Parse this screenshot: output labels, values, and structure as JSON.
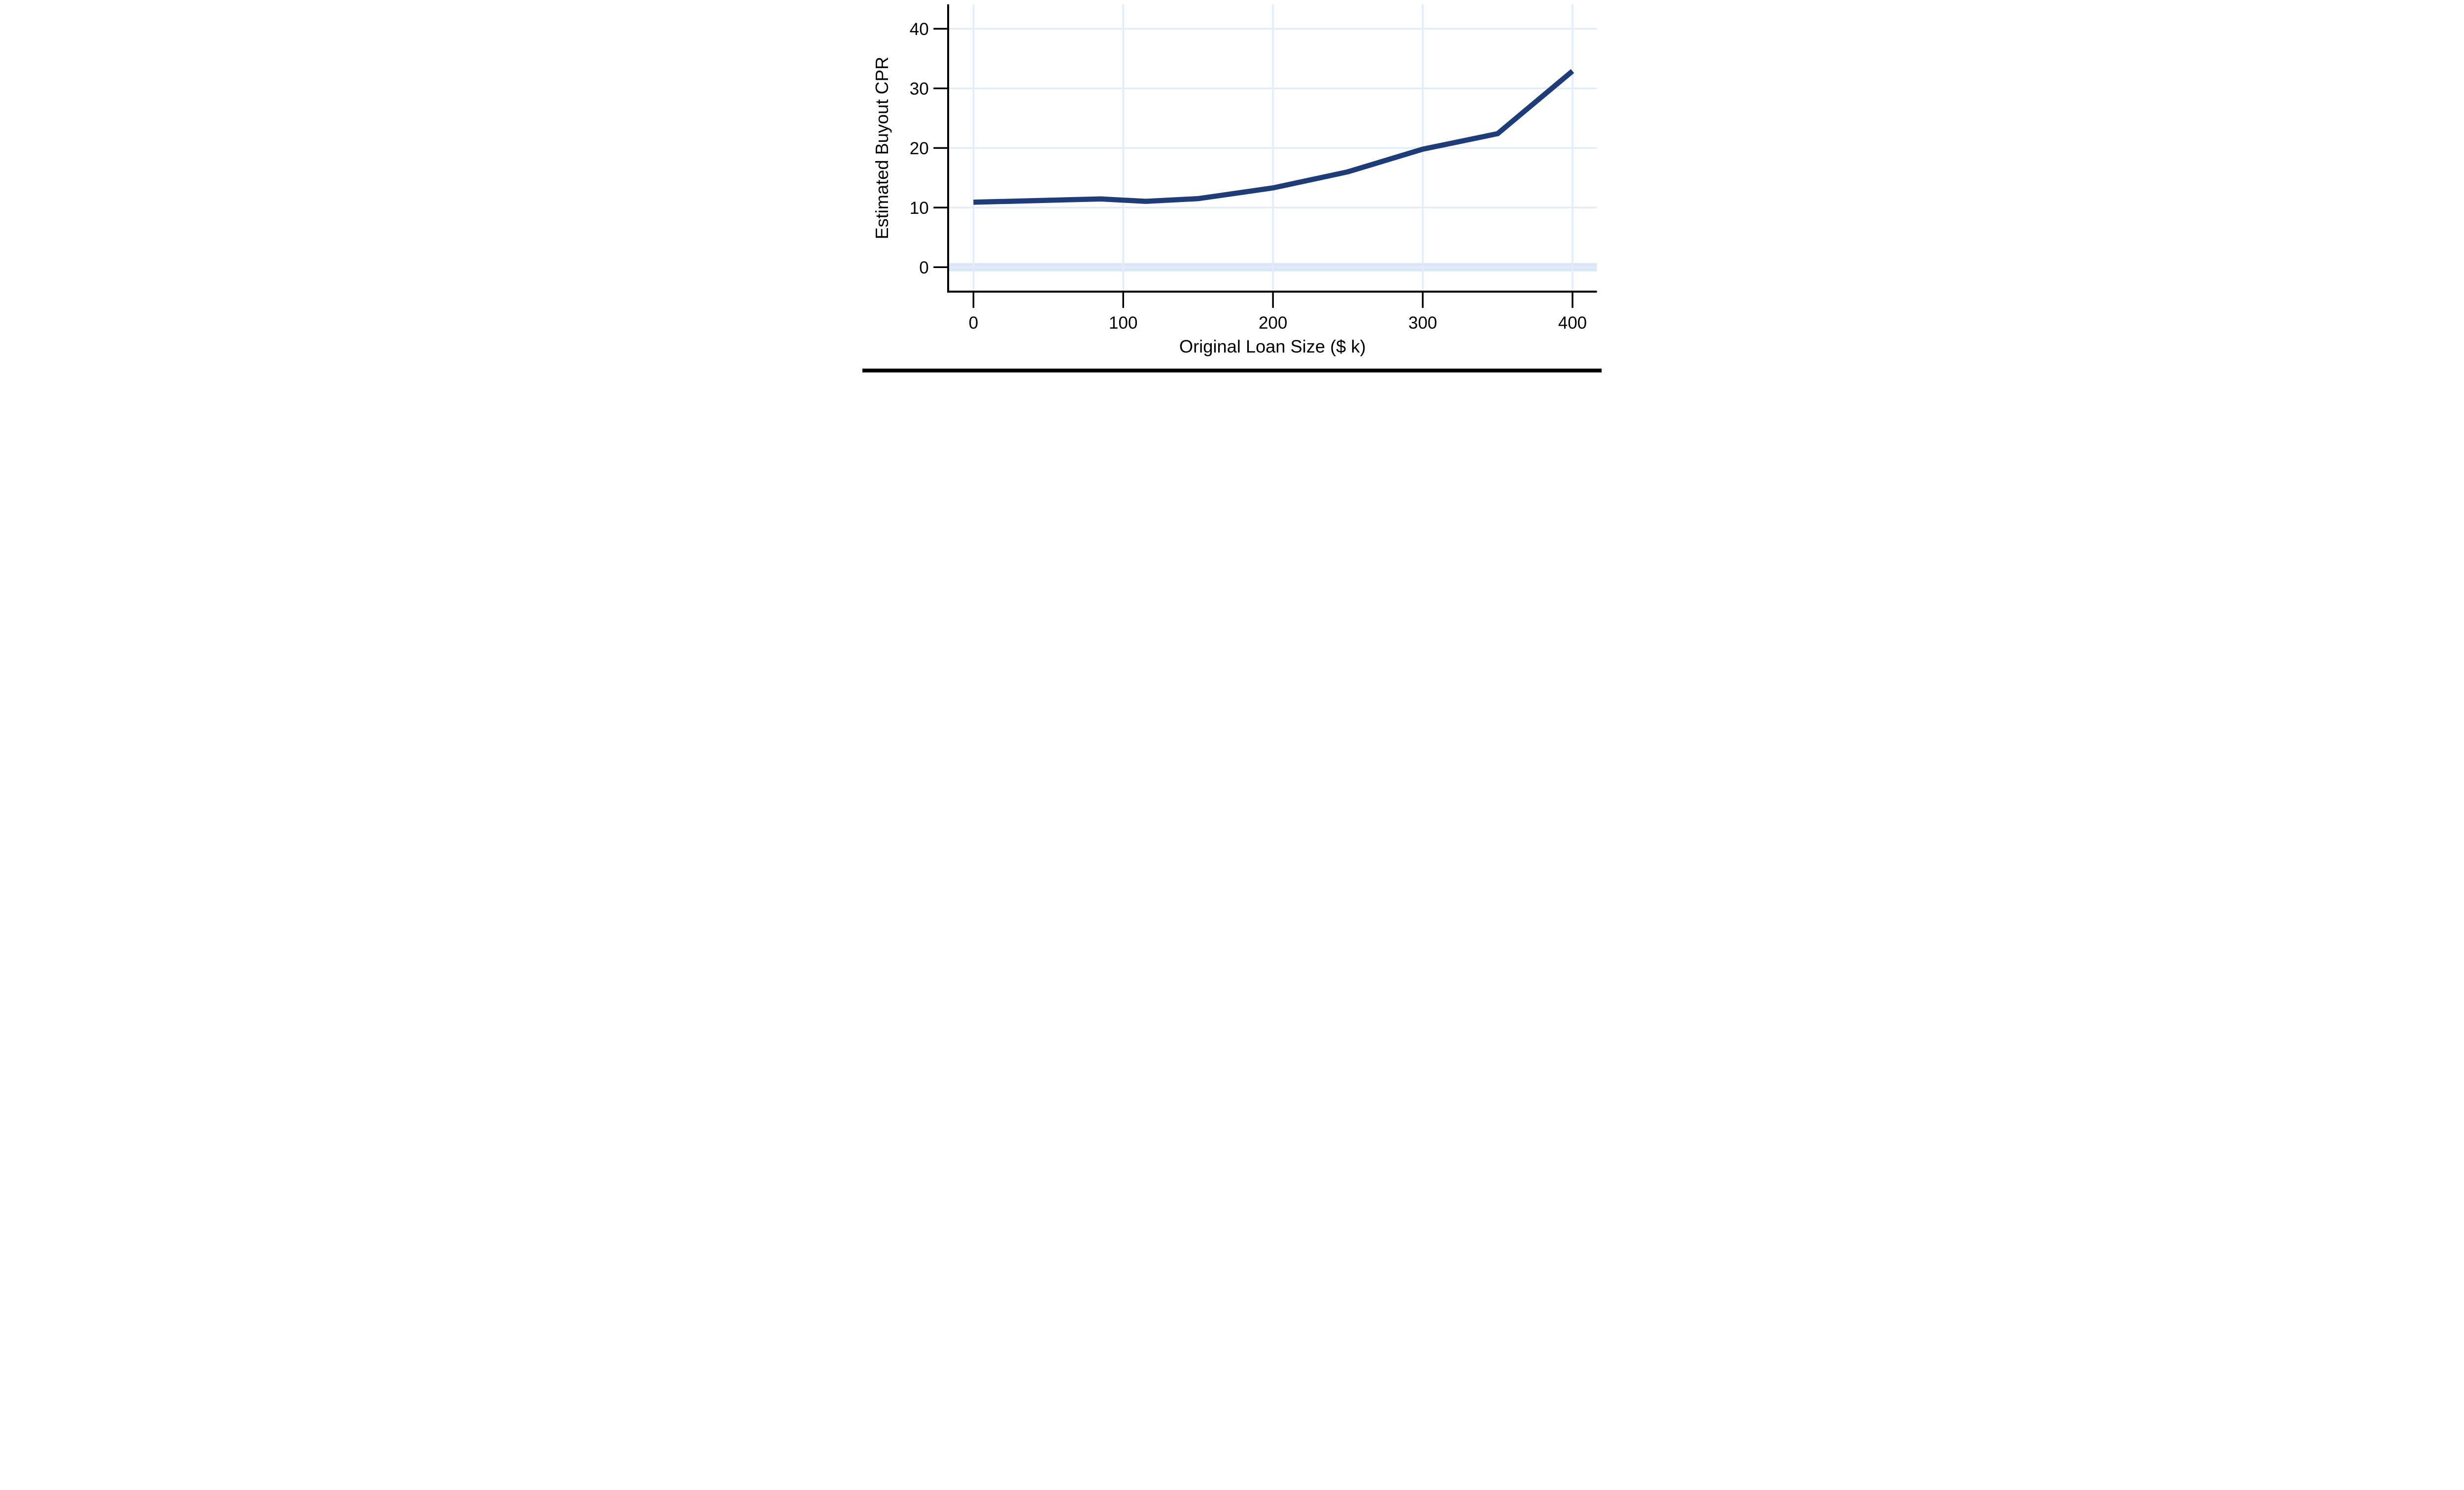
{
  "chart_data": {
    "type": "line",
    "title": "",
    "xlabel": "Original Loan Size ($ k)",
    "ylabel": "Estimated Buyout CPR",
    "x_ticks": [
      0,
      100,
      200,
      300,
      400
    ],
    "y_ticks": [
      0,
      10,
      20,
      30,
      40
    ],
    "xlim": [
      -16.9,
      416.3
    ],
    "ylim": [
      -4.1,
      44.1
    ],
    "grid": true,
    "legend": "none",
    "grid_color": "#e2edf9",
    "axis_color": "#000000",
    "text_color": "#000000",
    "zero_band": {
      "center": 0,
      "half_width": 0.7,
      "color": "#d9e7f6"
    },
    "series": [
      {
        "name": "Estimated Buyout CPR",
        "color": "#1e3c78",
        "points": [
          [
            0,
            10.9
          ],
          [
            85,
            11.45
          ],
          [
            115,
            11.05
          ],
          [
            150,
            11.5
          ],
          [
            200,
            13.3
          ],
          [
            250,
            16.0
          ],
          [
            300,
            19.8
          ],
          [
            350,
            22.4
          ],
          [
            400,
            32.9
          ]
        ]
      }
    ]
  },
  "figure": {
    "bottom_bar_color": "#000000"
  }
}
